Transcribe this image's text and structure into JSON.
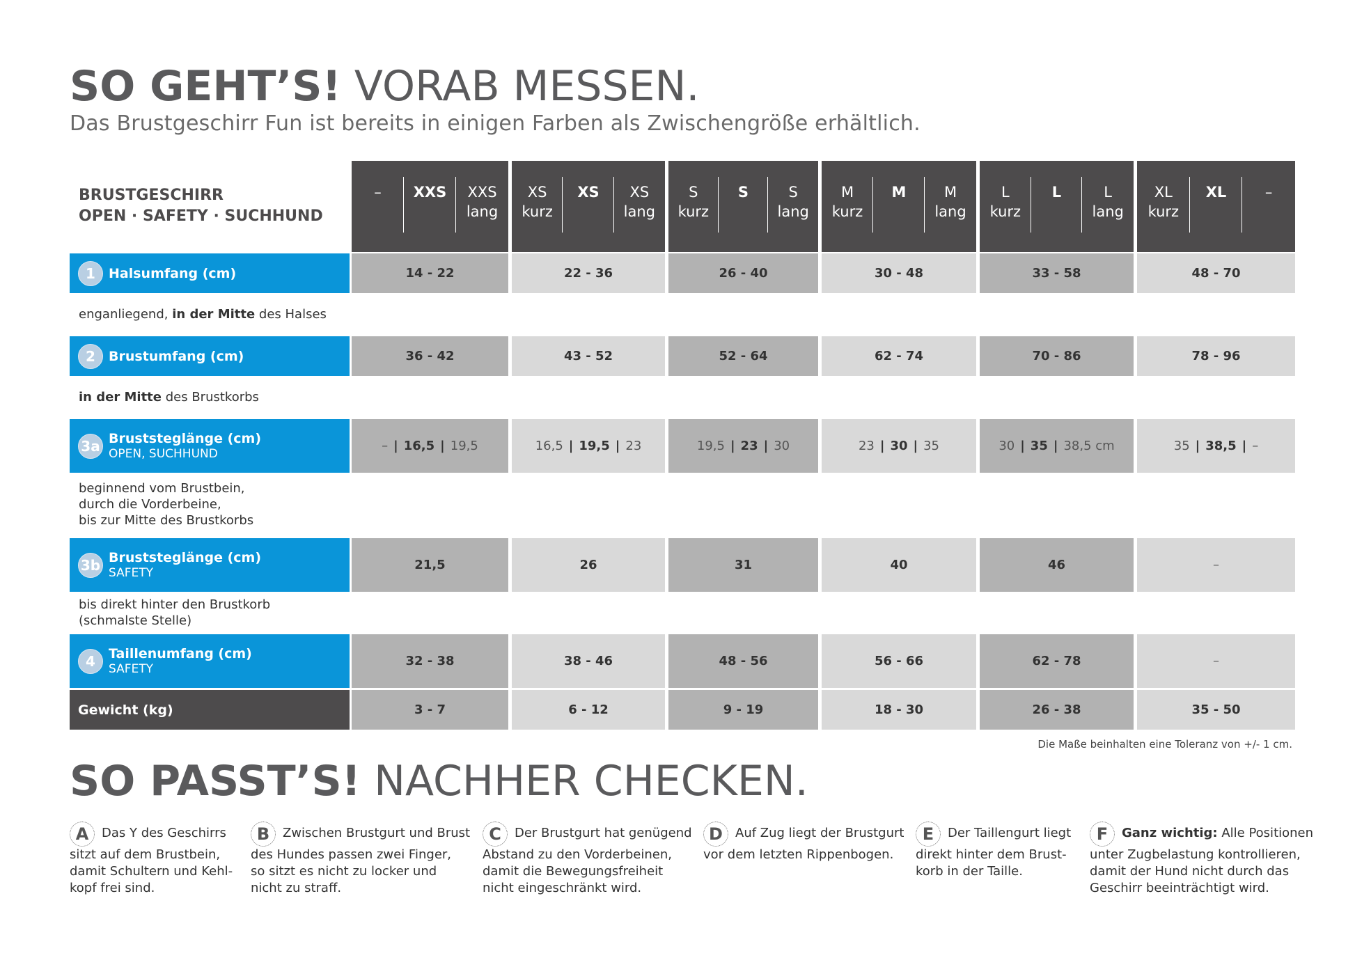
{
  "title1": {
    "bold": "SO GEHT’S!",
    "thin": " VORAB MESSEN."
  },
  "subtitle": "Das Brustgeschirr Fun ist bereits in einigen Farben als Zwischengröße erhältlich.",
  "header": {
    "line1": "BRUSTGESCHIRR",
    "line2": "OPEN · SAFETY · SUCHHUND"
  },
  "size_headers": [
    [
      {
        "t": "–",
        "b": ""
      },
      {
        "t": "XXS",
        "b": ""
      },
      {
        "t": "XXS",
        "b": "lang"
      }
    ],
    [
      {
        "t": "XS",
        "b": "kurz"
      },
      {
        "t": "XS",
        "b": ""
      },
      {
        "t": "XS",
        "b": "lang"
      }
    ],
    [
      {
        "t": "S",
        "b": "kurz"
      },
      {
        "t": "S",
        "b": ""
      },
      {
        "t": "S",
        "b": "lang"
      }
    ],
    [
      {
        "t": "M",
        "b": "kurz"
      },
      {
        "t": "M",
        "b": ""
      },
      {
        "t": "M",
        "b": "lang"
      }
    ],
    [
      {
        "t": "L",
        "b": "kurz"
      },
      {
        "t": "L",
        "b": ""
      },
      {
        "t": "L",
        "b": "lang"
      }
    ],
    [
      {
        "t": "XL",
        "b": "kurz"
      },
      {
        "t": "XL",
        "b": ""
      },
      {
        "t": "–",
        "b": ""
      }
    ]
  ],
  "rows": {
    "neck": {
      "num": "1",
      "label": "Halsumfang (cm)",
      "sub": "",
      "values": [
        "14 - 22",
        "22 - 36",
        "26 - 40",
        "30 - 48",
        "33 - 58",
        "48 - 70"
      ],
      "desc_pre": "enganliegend, ",
      "desc_bold": "in der Mitte",
      "desc_post": " des Halses"
    },
    "chest": {
      "num": "2",
      "label": "Brustumfang (cm)",
      "sub": "",
      "values": [
        "36 - 42",
        "43 - 52",
        "52 - 64",
        "62 - 74",
        "70 - 86",
        "78 - 96"
      ],
      "desc_pre": "",
      "desc_bold": "in der Mitte",
      "desc_post": " des Brustkorbs"
    },
    "steg_a": {
      "num": "3a",
      "label": "Bruststeglänge (cm)",
      "sub": "OPEN, SUCHHUND",
      "values": [
        [
          "–",
          "16,5",
          "19,5"
        ],
        [
          "16,5",
          "19,5",
          "23"
        ],
        [
          "19,5",
          "23",
          "30"
        ],
        [
          "23",
          "30",
          "35"
        ],
        [
          "30",
          "35",
          "38,5 cm"
        ],
        [
          "35",
          "38,5",
          "–"
        ]
      ],
      "desc_lines": [
        "beginnend vom Brustbein,",
        "durch die Vorderbeine,",
        "bis zur Mitte des Brustkorbs"
      ]
    },
    "steg_b": {
      "num": "3b",
      "label": "Bruststeglänge (cm)",
      "sub": "SAFETY",
      "values": [
        "21,5",
        "26",
        "31",
        "40",
        "46",
        "–"
      ],
      "desc_lines": [
        "bis direkt hinter den Brustkorb",
        "(schmalste Stelle)"
      ]
    },
    "waist": {
      "num": "4",
      "label": "Taillenumfang (cm)",
      "sub": "SAFETY",
      "values": [
        "32 - 38",
        "38 - 46",
        "48 - 56",
        "56 - 66",
        "62 - 78",
        "–"
      ]
    },
    "weight": {
      "label": "Gewicht (kg)",
      "values": [
        "3 - 7",
        "6 - 12",
        "9 - 19",
        "18 - 30",
        "26 - 38",
        "35 - 50"
      ]
    }
  },
  "tolerance": "Die Maße beinhalten eine Toleranz von +/- 1 cm.",
  "title2": {
    "bold": "SO PASST’S!",
    "thin": " NACHHER CHECKEN."
  },
  "checks": [
    {
      "letter": "A",
      "bold": "",
      "lines": [
        "Das Y des Geschirrs",
        "sitzt auf dem Brustbein,",
        "damit Schultern und Kehl-",
        "kopf frei sind."
      ]
    },
    {
      "letter": "B",
      "bold": "",
      "lines": [
        "Zwischen Brustgurt und Brust",
        "des Hundes passen zwei Finger,",
        "so sitzt es nicht zu locker und",
        "nicht zu straff."
      ]
    },
    {
      "letter": "C",
      "bold": "",
      "lines": [
        "Der Brustgurt hat genügend",
        "Abstand zu den Vorderbeinen,",
        "damit die Bewegungsfreiheit",
        "nicht eingeschränkt wird."
      ]
    },
    {
      "letter": "D",
      "bold": "",
      "lines": [
        "Auf Zug liegt der Brustgurt",
        "vor dem letzten Rippenbogen."
      ]
    },
    {
      "letter": "E",
      "bold": "",
      "lines": [
        "Der Taillengurt liegt",
        "direkt hinter dem Brust-",
        "korb in der Taille."
      ]
    },
    {
      "letter": "F",
      "bold": "Ganz wichtig:",
      "lines": [
        " Alle Positionen",
        "unter Zugbelastung kontrollieren,",
        "damit der Hund nicht durch das",
        "Geschirr beeinträchtigt wird."
      ]
    }
  ]
}
